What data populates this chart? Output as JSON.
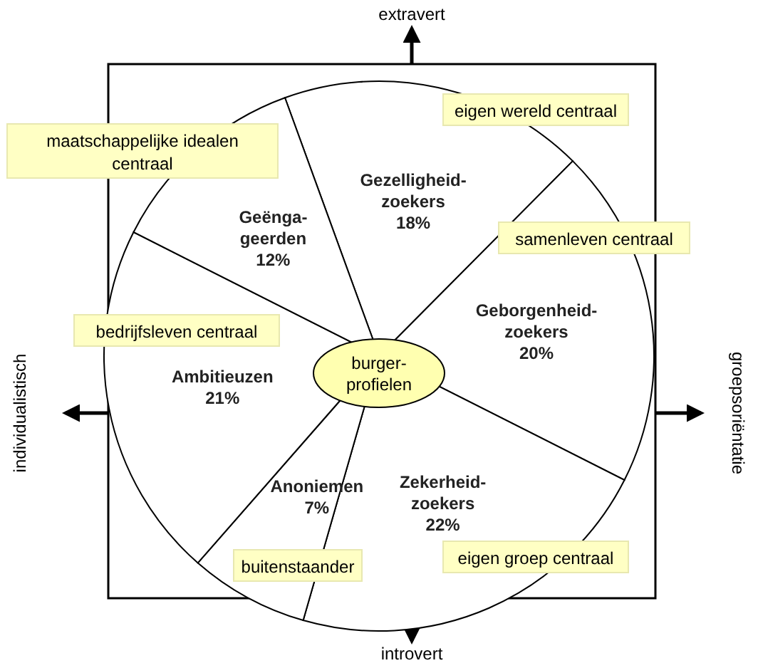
{
  "chart_data": {
    "type": "pie",
    "categories": [
      "Gezelligheid-zoekers",
      "Geborgenheid-zoekers",
      "Zekerheid-zoekers",
      "Anoniemen",
      "Ambitieuzen",
      "Geënga-geerden"
    ],
    "values": [
      18,
      20,
      22,
      7,
      21,
      12
    ],
    "colors": [
      "#ffffff",
      "#ffffff",
      "#ffffff",
      "#ffffff",
      "#ffffff",
      "#ffffff"
    ],
    "value_labels": [
      "18%",
      "20%",
      "22%",
      "7%",
      "21%",
      "12%"
    ],
    "annotations": [
      "extravert",
      "introvert",
      "individualistisch",
      "groepsoriëntatie",
      "maatschappelijke idealen centraal",
      "eigen wereld centraal",
      "samenleven centraal",
      "bedrijfsleven centraal",
      "buitenstaander",
      "eigen groep centraal",
      "burger-profielen"
    ]
  }
}
